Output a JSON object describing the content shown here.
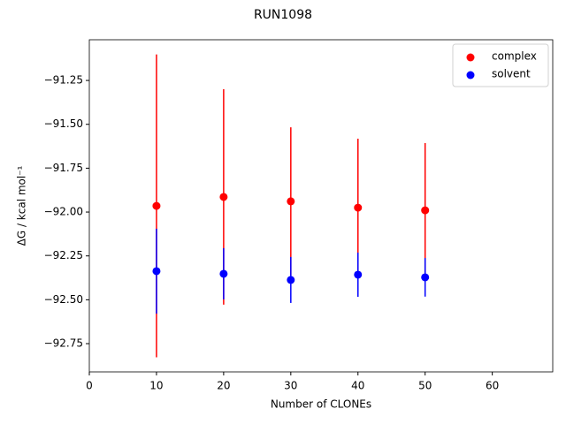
{
  "chart_data": {
    "type": "errorbar-scatter",
    "title": "RUN1098",
    "xlabel": "Number of CLONEs",
    "ylabel": "ΔG / kcal mol⁻¹",
    "x": [
      10,
      20,
      30,
      40,
      50
    ],
    "series": [
      {
        "name": "complex",
        "color": "#ff0000",
        "values": [
          -91.965,
          -91.914,
          -91.939,
          -91.975,
          -91.99
        ],
        "errors": [
          0.863,
          0.614,
          0.422,
          0.393,
          0.383
        ]
      },
      {
        "name": "solvent",
        "color": "#0000ff",
        "values": [
          -92.337,
          -92.352,
          -92.387,
          -92.357,
          -92.372
        ],
        "errors": [
          0.242,
          0.146,
          0.131,
          0.126,
          0.11
        ]
      }
    ],
    "xlim": [
      0,
      69
    ],
    "xticks": [
      0,
      10,
      20,
      30,
      40,
      50,
      60
    ],
    "ylim": [
      -92.911,
      -91.018
    ],
    "yticks": [
      {
        "value": -92.75,
        "label": "−92.75"
      },
      {
        "value": -92.5,
        "label": "−92.50"
      },
      {
        "value": -92.25,
        "label": "−92.25"
      },
      {
        "value": -92.0,
        "label": "−92.00"
      },
      {
        "value": -91.75,
        "label": "−91.75"
      },
      {
        "value": -91.5,
        "label": "−91.50"
      },
      {
        "value": -91.25,
        "label": "−91.25"
      }
    ],
    "legend": "upper right",
    "grid": false
  }
}
